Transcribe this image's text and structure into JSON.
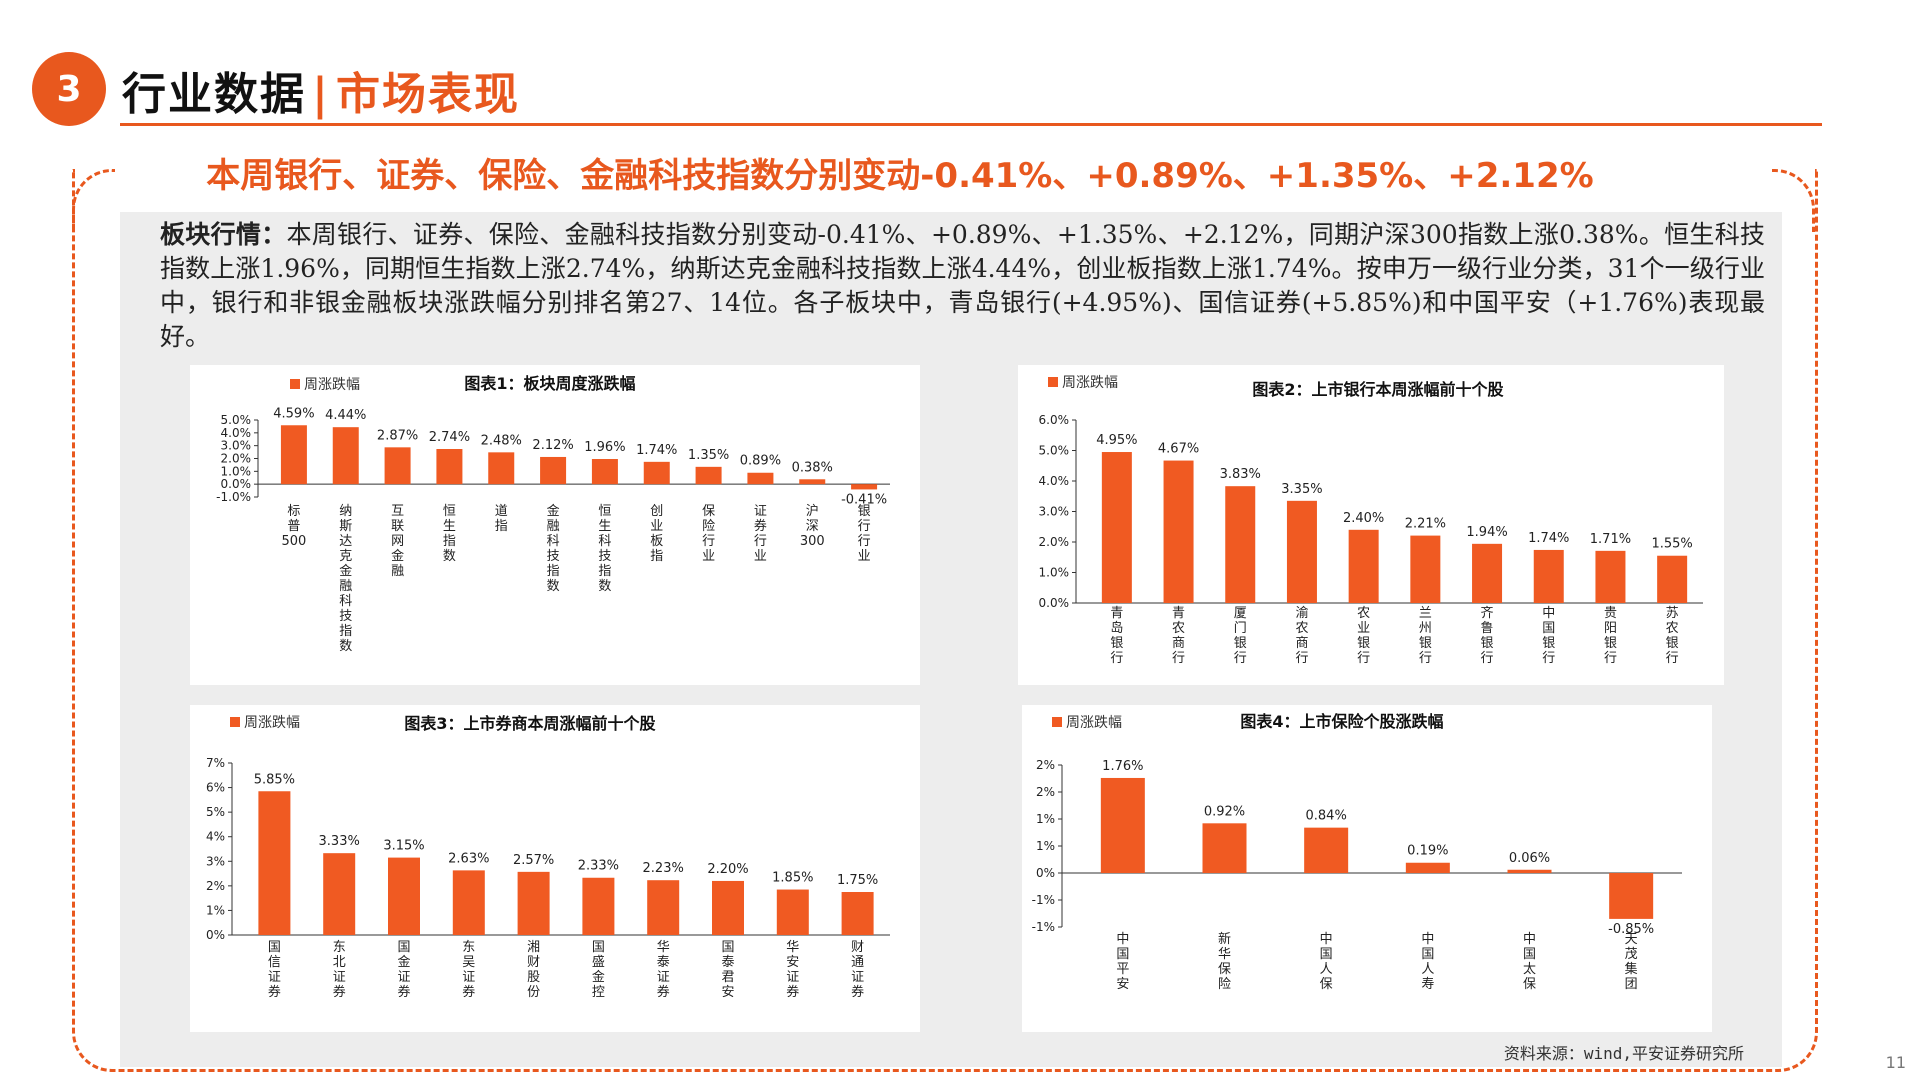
{
  "header": {
    "badge": "3",
    "title_main": "行业数据",
    "title_sep": "|",
    "title_sub": "市场表现"
  },
  "headline": "本周银行、证券、保险、金融科技指数分别变动-0.41%、+0.89%、+1.35%、+2.12%",
  "summary": {
    "label": "板块行情：",
    "text": "本周银行、证券、保险、金融科技指数分别变动-0.41%、+0.89%、+1.35%、+2.12%，同期沪深300指数上涨0.38%。恒生科技指数上涨1.96%，同期恒生指数上涨2.74%，纳斯达克金融科技指数上涨4.44%，创业板指数上涨1.74%。按申万一级行业分类，31个一级行业中，银行和非银金融板块涨跌幅分别排名第27、14位。各子板块中，青岛银行(+4.95%)、国信证券(+5.85%)和中国平安（+1.76%)表现最好。"
  },
  "source": "资料来源：wind,平安证券研究所",
  "page_number": "11",
  "colors": {
    "accent": "#E8581E",
    "bar": "#F05A22",
    "panel": "#EDEDED"
  },
  "chart_data": [
    {
      "type": "bar",
      "title": "图表1：板块周度涨跌幅",
      "legend": "周涨跌幅",
      "categories": [
        "标普500",
        "纳斯达克金融科技指数",
        "互联网金融",
        "恒生指数",
        "道指",
        "金融科技指数",
        "恒生科技指数",
        "创业板指",
        "保险行业",
        "证券行业",
        "沪深300",
        "银行行业"
      ],
      "values": [
        4.59,
        4.44,
        2.87,
        2.74,
        2.48,
        2.12,
        1.96,
        1.74,
        1.35,
        0.89,
        0.38,
        -0.41
      ],
      "labels": [
        "4.59%",
        "4.44%",
        "2.87%",
        "2.74%",
        "2.48%",
        "2.12%",
        "1.96%",
        "1.74%",
        "1.35%",
        "0.89%",
        "0.38%",
        "-0.41%"
      ],
      "yticks": [
        "5.0%",
        "4.0%",
        "3.0%",
        "2.0%",
        "1.0%",
        "0.0%",
        "-1.0%"
      ],
      "ylim": [
        -1,
        5
      ]
    },
    {
      "type": "bar",
      "title": "图表2：上市银行本周涨幅前十个股",
      "legend": "周涨跌幅",
      "categories": [
        "青岛银行",
        "青农商行",
        "厦门银行",
        "渝农商行",
        "农业银行",
        "兰州银行",
        "齐鲁银行",
        "中国银行",
        "贵阳银行",
        "苏农银行"
      ],
      "values": [
        4.95,
        4.67,
        3.83,
        3.35,
        2.4,
        2.21,
        1.94,
        1.74,
        1.71,
        1.55
      ],
      "labels": [
        "4.95%",
        "4.67%",
        "3.83%",
        "3.35%",
        "2.40%",
        "2.21%",
        "1.94%",
        "1.74%",
        "1.71%",
        "1.55%"
      ],
      "yticks": [
        "6.0%",
        "5.0%",
        "4.0%",
        "3.0%",
        "2.0%",
        "1.0%",
        "0.0%"
      ],
      "ylim": [
        0,
        6
      ]
    },
    {
      "type": "bar",
      "title": "图表3：上市券商本周涨幅前十个股",
      "legend": "周涨跌幅",
      "categories": [
        "国信证券",
        "东北证券",
        "国金证券",
        "东吴证券",
        "湘财股份",
        "国盛金控",
        "华泰证券",
        "国泰君安",
        "华安证券",
        "财通证券"
      ],
      "values": [
        5.85,
        3.33,
        3.15,
        2.63,
        2.57,
        2.33,
        2.23,
        2.2,
        1.85,
        1.75
      ],
      "labels": [
        "5.85%",
        "3.33%",
        "3.15%",
        "2.63%",
        "2.57%",
        "2.33%",
        "2.23%",
        "2.20%",
        "1.85%",
        "1.75%"
      ],
      "yticks": [
        "7%",
        "6%",
        "5%",
        "4%",
        "3%",
        "2%",
        "1%",
        "0%"
      ],
      "ylim": [
        0,
        7
      ]
    },
    {
      "type": "bar",
      "title": "图表4：上市保险个股涨跌幅",
      "legend": "周涨跌幅",
      "categories": [
        "中国平安",
        "新华保险",
        "中国人保",
        "中国人寿",
        "中国太保",
        "天茂集团"
      ],
      "values": [
        1.76,
        0.92,
        0.84,
        0.19,
        0.06,
        -0.85
      ],
      "labels": [
        "1.76%",
        "0.92%",
        "0.84%",
        "0.19%",
        "0.06%",
        "-0.85%"
      ],
      "yticks": [
        "2%",
        "2%",
        "1%",
        "1%",
        "0%",
        "-1%",
        "-1%"
      ],
      "ylim": [
        -1,
        2
      ]
    }
  ]
}
